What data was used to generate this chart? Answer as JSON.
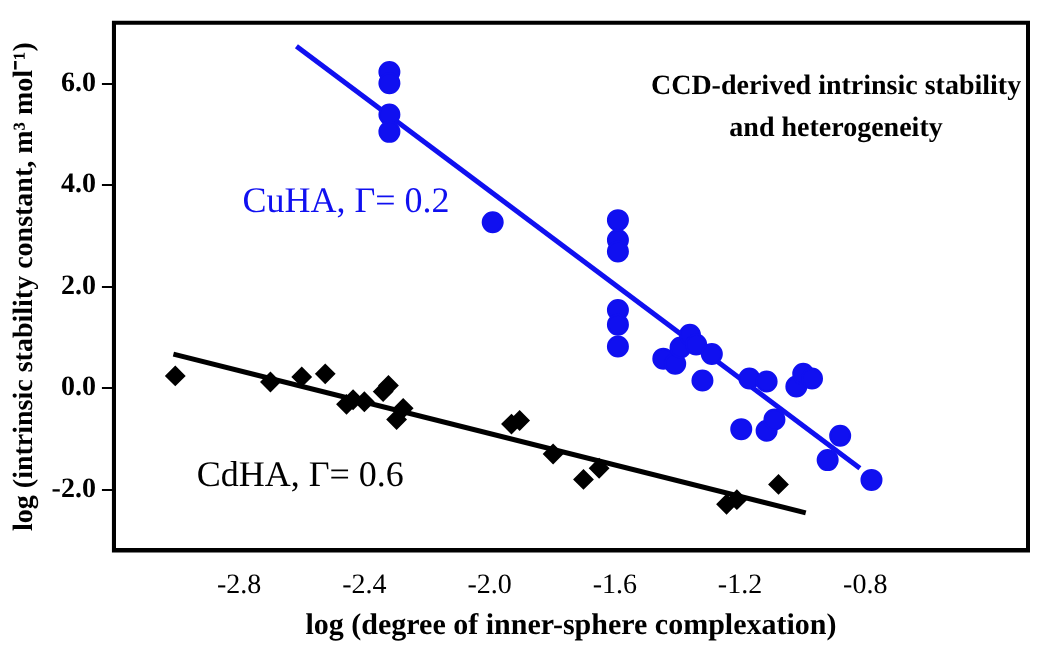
{
  "chart_data": {
    "type": "scatter",
    "title": "CCD-derived intrinsic stability and heterogeneity",
    "xlabel": "log (degree of inner-sphere complexation)",
    "ylabel": "log (intrinsic stability constant, m³ mol⁻¹)",
    "xlim": [
      -3.2,
      -0.28
    ],
    "ylim": [
      -3.2,
      7.2
    ],
    "xticks": [
      {
        "value": -2.8,
        "label": "-2.8"
      },
      {
        "value": -2.4,
        "label": "-2.4"
      },
      {
        "value": -2.0,
        "label": "-2.0"
      },
      {
        "value": -1.6,
        "label": "-1.6"
      },
      {
        "value": -1.2,
        "label": "-1.2"
      },
      {
        "value": -0.8,
        "label": "-0.8"
      }
    ],
    "yticks": [
      {
        "value": -2,
        "label": "-2.0"
      },
      {
        "value": 0,
        "label": "0.0"
      },
      {
        "value": 2,
        "label": "2.0"
      },
      {
        "value": 4,
        "label": "4.0"
      },
      {
        "value": 6,
        "label": "6.0"
      }
    ],
    "grid": false,
    "legend": false,
    "series": [
      {
        "name": "CuHA, Γ= 0.2",
        "color": "#1010f0",
        "marker": "circle",
        "x": [
          -2.32,
          -2.32,
          -2.32,
          -2.32,
          -1.99,
          -1.59,
          -1.59,
          -1.59,
          -1.59,
          -1.59,
          -1.59,
          -1.445,
          -1.407,
          -1.39,
          -1.36,
          -1.34,
          -1.29,
          -1.32,
          -1.19,
          -1.17,
          -1.115,
          -1.02,
          -0.998,
          -0.97,
          -1.196,
          -1.115,
          -1.09,
          -0.88,
          -0.92,
          -0.78
        ],
        "values": [
          6.23,
          6.01,
          5.39,
          5.05,
          3.27,
          3.31,
          2.92,
          2.69,
          1.54,
          1.25,
          0.82,
          0.58,
          0.48,
          0.8,
          1.05,
          0.86,
          0.67,
          0.15,
          null,
          0.19,
          0.13,
          0.03,
          0.28,
          0.19,
          -0.81,
          -0.84,
          -0.62,
          -0.94,
          -1.42,
          -1.81
        ]
      },
      {
        "name": "CdHA, Γ= 0.6",
        "color": "#000000",
        "marker": "diamond",
        "x": [
          -3.004,
          -2.7,
          -2.6,
          -2.525,
          -2.457,
          -2.436,
          -2.4,
          -2.34,
          -2.323,
          -2.276,
          -2.297,
          -1.93,
          -1.904,
          -1.797,
          -1.7,
          -1.65,
          -1.243,
          -1.21,
          -1.077
        ],
        "values": [
          0.24,
          0.12,
          0.22,
          0.28,
          -0.32,
          -0.23,
          -0.27,
          -0.07,
          0.05,
          -0.4,
          -0.62,
          -0.71,
          -0.64,
          -1.3,
          -1.8,
          -1.58,
          -2.29,
          -2.2,
          -1.9
        ]
      },
      {
        "type": "line",
        "color": "#1010f0",
        "marker": "none",
        "x": [
          -2.617,
          -0.817
        ],
        "values": [
          6.74,
          -1.58
        ]
      },
      {
        "type": "line",
        "color": "#000000",
        "marker": "none",
        "x": [
          -3.01,
          -0.99
        ],
        "values": [
          0.67,
          -2.46
        ]
      }
    ]
  }
}
